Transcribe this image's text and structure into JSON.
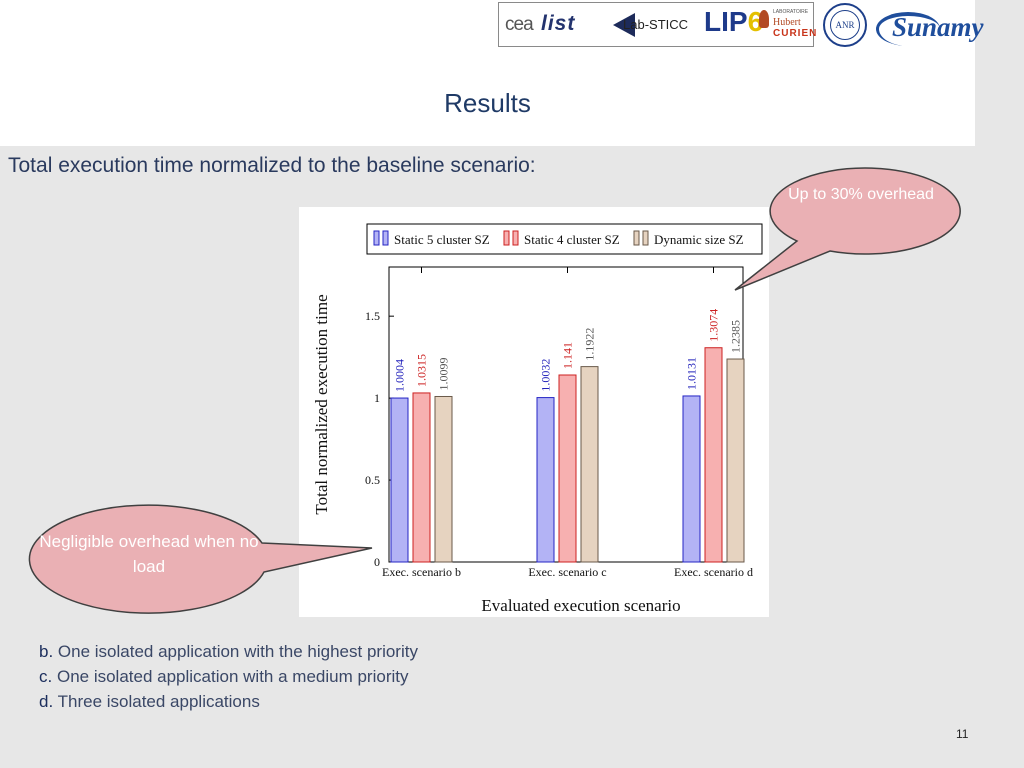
{
  "header": {
    "title": "Results",
    "logos": {
      "cea": "cea",
      "list": "list",
      "labsticc": "Lab-STICC",
      "lip6": "LIP",
      "lip6_num": "6",
      "hc_small": "LABORATOIRE",
      "hc_line1": "Hubert",
      "hc_line2": "CURIEN",
      "anr": "ANR",
      "sunamy": "Sunamy"
    }
  },
  "subtitle": "Total execution time normalized to the baseline scenario:",
  "callouts": {
    "right": "Up to 30% overhead",
    "left": "Negligible overhead when no load",
    "fill_color": "#eab0b4",
    "border_color": "#404040"
  },
  "chart_data": {
    "type": "bar",
    "ylabel": "Total normalized execution time",
    "xlabel": "Evaluated execution scenario",
    "ylim": [
      0,
      1.8
    ],
    "yticks": [
      "0",
      "0.5",
      "1",
      "1.5"
    ],
    "ytick_values": [
      0,
      0.5,
      1,
      1.5
    ],
    "categories": [
      "Exec. scenario b",
      "Exec. scenario c",
      "Exec. scenario d"
    ],
    "legend_position": "top",
    "grid": false,
    "series": [
      {
        "name": "Static 5 cluster SZ",
        "values": [
          1.0004,
          1.0032,
          1.0131
        ],
        "labels": [
          "1.0004",
          "1.0032",
          "1.0131"
        ],
        "fill": "#b3b3f5",
        "stroke": "#2424c4",
        "label_color": "#2222bb"
      },
      {
        "name": "Static 4 cluster SZ",
        "values": [
          1.0315,
          1.141,
          1.3074
        ],
        "labels": [
          "1.0315",
          "1.141",
          "1.3074"
        ],
        "fill": "#f7b0b0",
        "stroke": "#cc2020",
        "label_color": "#cc2020"
      },
      {
        "name": "Dynamic size SZ",
        "values": [
          1.0099,
          1.1922,
          1.2385
        ],
        "labels": [
          "1.0099",
          "1.1922",
          "1.2385"
        ],
        "fill": "#e6d3c0",
        "stroke": "#6a5a4a",
        "label_color": "#555555"
      }
    ]
  },
  "notes": [
    {
      "key": "b.",
      "text": "One isolated application with the highest priority"
    },
    {
      "key": "c.",
      "text": "One isolated application with a medium priority"
    },
    {
      "key": "d.",
      "text": "Three isolated applications"
    }
  ],
  "page_number": "11"
}
